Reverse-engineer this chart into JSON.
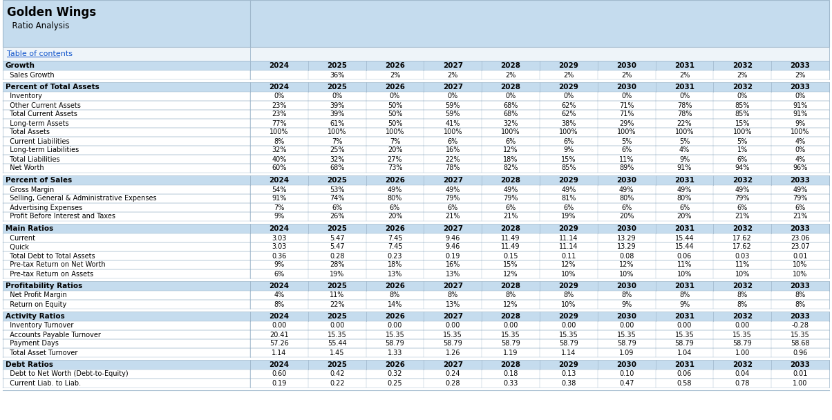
{
  "title": "Golden Wings",
  "subtitle": "  Ratio Analysis",
  "link_text": "Table of contents",
  "years": [
    "2024",
    "2025",
    "2026",
    "2027",
    "2028",
    "2029",
    "2030",
    "2031",
    "2032",
    "2033"
  ],
  "header_bg": "#C5DCEE",
  "section_bg": "#C5DCEE",
  "white_bg": "#FFFFFF",
  "border_color": "#A0B8CC",
  "link_color": "#1155CC",
  "sections": [
    {
      "name": "Growth",
      "rows": [
        {
          "label": "  Sales Growth",
          "values": [
            "",
            "36%",
            "2%",
            "2%",
            "2%",
            "2%",
            "2%",
            "2%",
            "2%",
            "2%"
          ]
        }
      ]
    },
    {
      "name": "Percent of Total Assets",
      "rows": [
        {
          "label": "  Inventory",
          "values": [
            "0%",
            "0%",
            "0%",
            "0%",
            "0%",
            "0%",
            "0%",
            "0%",
            "0%",
            "0%"
          ]
        },
        {
          "label": "  Other Current Assets",
          "values": [
            "23%",
            "39%",
            "50%",
            "59%",
            "68%",
            "62%",
            "71%",
            "78%",
            "85%",
            "91%"
          ]
        },
        {
          "label": "  Total Current Assets",
          "values": [
            "23%",
            "39%",
            "50%",
            "59%",
            "68%",
            "62%",
            "71%",
            "78%",
            "85%",
            "91%"
          ]
        },
        {
          "label": "  Long-term Assets",
          "values": [
            "77%",
            "61%",
            "50%",
            "41%",
            "32%",
            "38%",
            "29%",
            "22%",
            "15%",
            "9%"
          ]
        },
        {
          "label": "  Total Assets",
          "values": [
            "100%",
            "100%",
            "100%",
            "100%",
            "100%",
            "100%",
            "100%",
            "100%",
            "100%",
            "100%"
          ]
        },
        {
          "label": "  Current Liabilities",
          "values": [
            "8%",
            "7%",
            "7%",
            "6%",
            "6%",
            "6%",
            "5%",
            "5%",
            "5%",
            "4%"
          ]
        },
        {
          "label": "  Long-term Liabilities",
          "values": [
            "32%",
            "25%",
            "20%",
            "16%",
            "12%",
            "9%",
            "6%",
            "4%",
            "1%",
            "0%"
          ]
        },
        {
          "label": "  Total Liabilities",
          "values": [
            "40%",
            "32%",
            "27%",
            "22%",
            "18%",
            "15%",
            "11%",
            "9%",
            "6%",
            "4%"
          ]
        },
        {
          "label": "  Net Worth",
          "values": [
            "60%",
            "68%",
            "73%",
            "78%",
            "82%",
            "85%",
            "89%",
            "91%",
            "94%",
            "96%"
          ]
        }
      ]
    },
    {
      "name": "Percent of Sales",
      "rows": [
        {
          "label": "  Gross Margin",
          "values": [
            "54%",
            "53%",
            "49%",
            "49%",
            "49%",
            "49%",
            "49%",
            "49%",
            "49%",
            "49%"
          ]
        },
        {
          "label": "  Selling, General & Administrative Expenses",
          "values": [
            "91%",
            "74%",
            "80%",
            "79%",
            "79%",
            "81%",
            "80%",
            "80%",
            "79%",
            "79%"
          ]
        },
        {
          "label": "  Advertising Expenses",
          "values": [
            "7%",
            "6%",
            "6%",
            "6%",
            "6%",
            "6%",
            "6%",
            "6%",
            "6%",
            "6%"
          ]
        },
        {
          "label": "  Profit Before Interest and Taxes",
          "values": [
            "9%",
            "26%",
            "20%",
            "21%",
            "21%",
            "19%",
            "20%",
            "20%",
            "21%",
            "21%"
          ]
        }
      ]
    },
    {
      "name": "Main Ratios",
      "rows": [
        {
          "label": "  Current",
          "values": [
            "3.03",
            "5.47",
            "7.45",
            "9.46",
            "11.49",
            "11.14",
            "13.29",
            "15.44",
            "17.62",
            "23.06"
          ]
        },
        {
          "label": "  Quick",
          "values": [
            "3.03",
            "5.47",
            "7.45",
            "9.46",
            "11.49",
            "11.14",
            "13.29",
            "15.44",
            "17.62",
            "23.07"
          ]
        },
        {
          "label": "  Total Debt to Total Assets",
          "values": [
            "0.36",
            "0.28",
            "0.23",
            "0.19",
            "0.15",
            "0.11",
            "0.08",
            "0.06",
            "0.03",
            "0.01"
          ]
        },
        {
          "label": "  Pre-tax Return on Net Worth",
          "values": [
            "9%",
            "28%",
            "18%",
            "16%",
            "15%",
            "12%",
            "12%",
            "11%",
            "11%",
            "10%"
          ]
        },
        {
          "label": "  Pre-tax Return on Assets",
          "values": [
            "6%",
            "19%",
            "13%",
            "13%",
            "12%",
            "10%",
            "10%",
            "10%",
            "10%",
            "10%"
          ]
        }
      ]
    },
    {
      "name": "Profitability Ratios",
      "rows": [
        {
          "label": "  Net Profit Margin",
          "values": [
            "4%",
            "11%",
            "8%",
            "8%",
            "8%",
            "8%",
            "8%",
            "8%",
            "8%",
            "8%"
          ]
        },
        {
          "label": "  Return on Equity",
          "values": [
            "8%",
            "22%",
            "14%",
            "13%",
            "12%",
            "10%",
            "9%",
            "9%",
            "8%",
            "8%"
          ]
        }
      ]
    },
    {
      "name": "Activity Ratios",
      "rows": [
        {
          "label": "  Inventory Turnover",
          "values": [
            "0.00",
            "0.00",
            "0.00",
            "0.00",
            "0.00",
            "0.00",
            "0.00",
            "0.00",
            "0.00",
            "-0.28"
          ]
        },
        {
          "label": "  Accounts Payable Turnover",
          "values": [
            "20.41",
            "15.35",
            "15.35",
            "15.35",
            "15.35",
            "15.35",
            "15.35",
            "15.35",
            "15.35",
            "15.35"
          ]
        },
        {
          "label": "  Payment Days",
          "values": [
            "57.26",
            "55.44",
            "58.79",
            "58.79",
            "58.79",
            "58.79",
            "58.79",
            "58.79",
            "58.79",
            "58.68"
          ]
        },
        {
          "label": "  Total Asset Turnover",
          "values": [
            "1.14",
            "1.45",
            "1.33",
            "1.26",
            "1.19",
            "1.14",
            "1.09",
            "1.04",
            "1.00",
            "0.96"
          ]
        }
      ]
    },
    {
      "name": "Debt Ratios",
      "rows": [
        {
          "label": "  Debt to Net Worth (Debt-to-Equity)",
          "values": [
            "0.60",
            "0.42",
            "0.32",
            "0.24",
            "0.18",
            "0.13",
            "0.10",
            "0.06",
            "0.04",
            "0.01"
          ]
        },
        {
          "label": "  Current Liab. to Liab.",
          "values": [
            "0.19",
            "0.22",
            "0.25",
            "0.28",
            "0.33",
            "0.38",
            "0.47",
            "0.58",
            "0.78",
            "1.00"
          ]
        }
      ]
    }
  ]
}
